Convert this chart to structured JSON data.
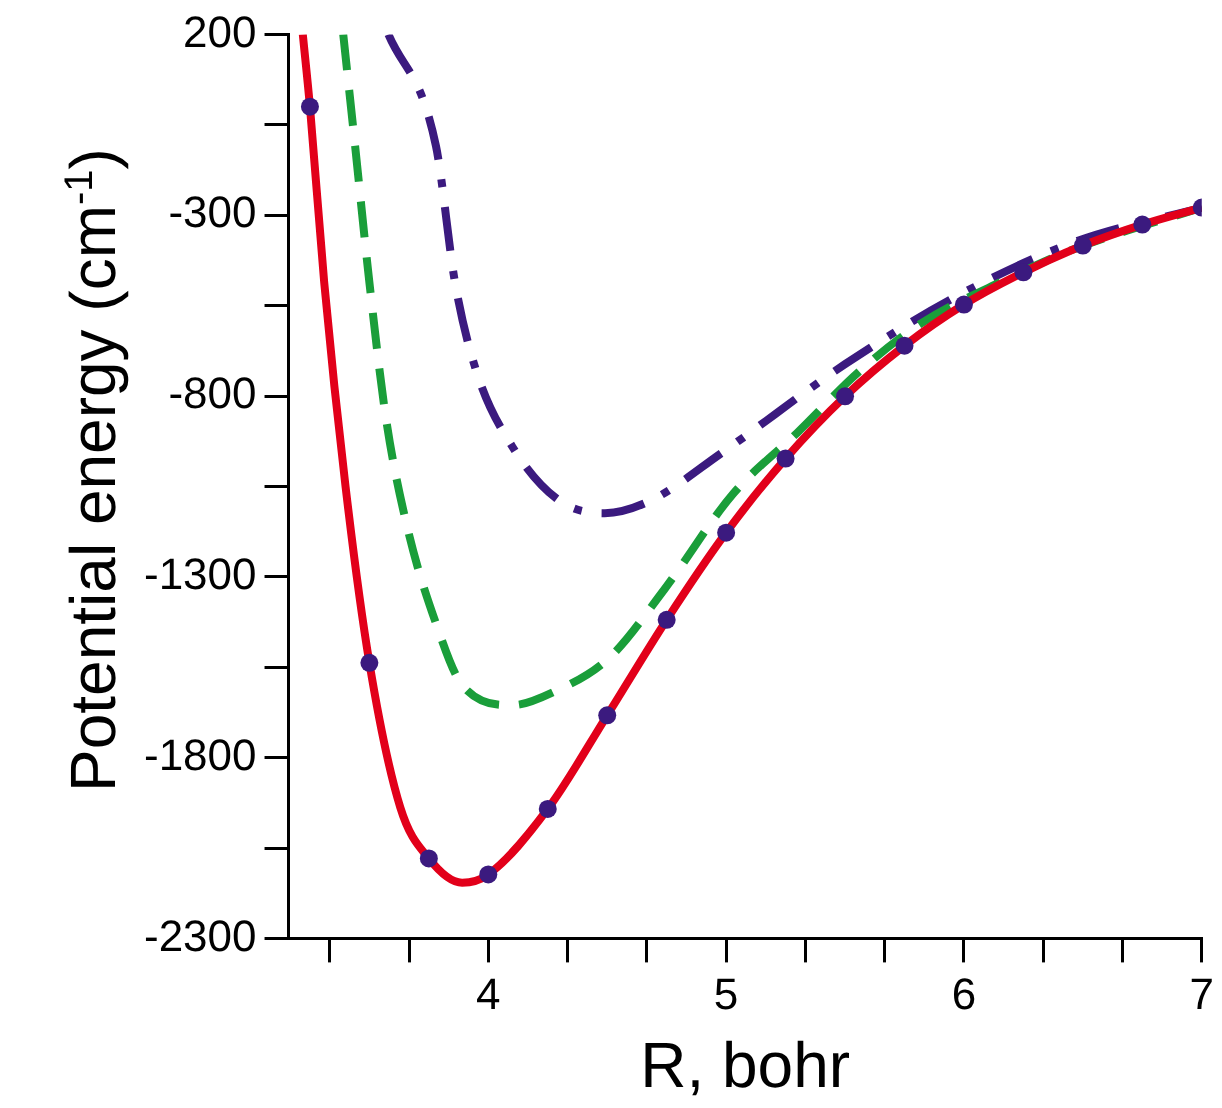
{
  "chart_data": {
    "type": "line",
    "xlabel": "R, bohr",
    "ylabel": "Potential energy (cm$^{-1}$)",
    "xlim": [
      3.16,
      7
    ],
    "ylim": [
      -2300,
      200
    ],
    "xticks": [
      {
        "value": 3.333,
        "label": null
      },
      {
        "value": 3.667,
        "label": null
      },
      4,
      {
        "value": 4.333,
        "label": null
      },
      {
        "value": 4.667,
        "label": null
      },
      5,
      {
        "value": 5.333,
        "label": null
      },
      {
        "value": 5.667,
        "label": null
      },
      6,
      {
        "value": 6.333,
        "label": null
      },
      {
        "value": 6.667,
        "label": null
      },
      7
    ],
    "yticks": [
      200,
      {
        "value": -50,
        "label": null
      },
      -300,
      {
        "value": -550,
        "label": null
      },
      -800,
      {
        "value": -1050,
        "label": null
      },
      -1300,
      {
        "value": -1550,
        "label": null
      },
      -1800,
      {
        "value": -2050,
        "label": null
      },
      -2300
    ],
    "grid": false,
    "legend": false,
    "series": [
      {
        "color": "#e2001a",
        "line_style": "solid",
        "marker": "none",
        "x": [
          3.22,
          3.25,
          3.31,
          3.4,
          3.5,
          3.63,
          3.75,
          3.89,
          4,
          4.25,
          4.5,
          4.75,
          5,
          5.25,
          5.5,
          5.75,
          6,
          6.25,
          6.5,
          6.75,
          7
        ],
        "values": [
          200,
          0,
          -486,
          -1052,
          -1538,
          -1938,
          -2079,
          -2146,
          -2123,
          -1942,
          -1683,
          -1419,
          -1178,
          -973,
          -801,
          -661,
          -547,
          -458,
          -384,
          -326,
          -279
        ]
      },
      {
        "color": "#1a9e3a",
        "line_style": "dashed",
        "marker": "none",
        "x": [
          3.39,
          3.44,
          3.5,
          3.57,
          3.66,
          3.78,
          3.89,
          4.1,
          4.28,
          4.51,
          4.74,
          5.03,
          5.3,
          5.56,
          5.82,
          6.18,
          6.47,
          7
        ],
        "values": [
          200,
          -109,
          -486,
          -863,
          -1165,
          -1429,
          -1599,
          -1655,
          -1617,
          -1523,
          -1335,
          -1070,
          -901,
          -732,
          -599,
          -477,
          -392,
          -279
        ]
      },
      {
        "color": "#3b1a7f",
        "line_style": "dashdot",
        "marker": "none",
        "x": [
          3.58,
          3.78,
          3.86,
          3.95,
          4.1,
          4.3,
          4.49,
          4.68,
          4.98,
          5.5,
          5.97,
          6.47,
          7
        ],
        "values": [
          200,
          -109,
          -486,
          -732,
          -939,
          -1090,
          -1124,
          -1090,
          -958,
          -712,
          -524,
          -373,
          -279
        ]
      },
      {
        "type": "scatter",
        "color": "#3b1a7f",
        "marker": "circle",
        "x": [
          3.25,
          3.5,
          3.75,
          4,
          4.25,
          4.5,
          4.75,
          5,
          5.25,
          5.5,
          5.75,
          6,
          6.25,
          6.5,
          6.75,
          7
        ],
        "values": [
          0,
          -1538,
          -2079,
          -2123,
          -1942,
          -1683,
          -1419,
          -1178,
          -973,
          -801,
          -661,
          -547,
          -458,
          -384,
          -326,
          -279
        ]
      }
    ]
  }
}
